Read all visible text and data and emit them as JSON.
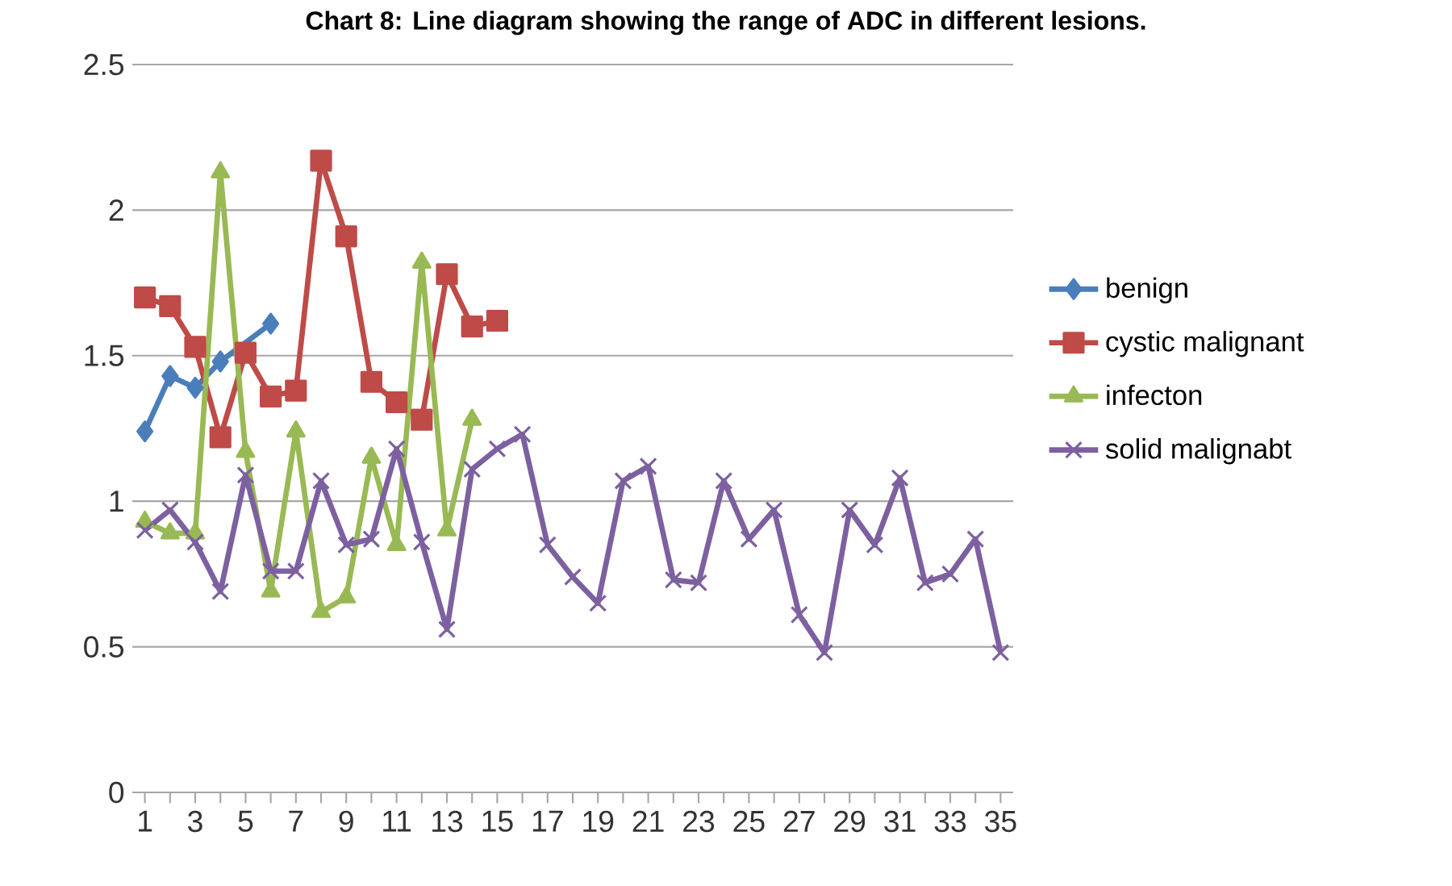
{
  "chart_data": {
    "type": "line",
    "title": "Chart 8: Line diagram showing the range of ADC in different lesions.",
    "categories": [
      "1",
      null,
      "3",
      null,
      "5",
      null,
      "7",
      null,
      "9",
      null,
      "11",
      null,
      "13",
      null,
      "15",
      null,
      "17",
      null,
      "19",
      null,
      "21",
      null,
      "23",
      null,
      "25",
      null,
      "27",
      null,
      "29",
      null,
      "31",
      null,
      "33",
      null,
      "35"
    ],
    "series": [
      {
        "name": "benign",
        "color": "#4a7ebb",
        "marker": "diamond",
        "values": [
          1.24,
          1.43,
          1.39,
          1.48,
          null,
          1.61,
          null,
          null,
          null,
          null,
          null,
          null,
          null,
          null,
          null,
          null,
          null,
          null,
          null,
          null,
          null,
          null,
          null,
          null,
          null,
          null,
          null,
          null,
          null,
          null,
          null,
          null,
          null,
          null,
          null
        ]
      },
      {
        "name": "cystic malignant",
        "color": "#be4b48",
        "marker": "square",
        "values": [
          1.7,
          1.67,
          1.53,
          1.22,
          1.51,
          1.36,
          1.38,
          2.17,
          1.91,
          1.41,
          1.34,
          1.28,
          1.78,
          1.6,
          1.62,
          null,
          null,
          null,
          null,
          null,
          null,
          null,
          null,
          null,
          null,
          null,
          null,
          null,
          null,
          null,
          null,
          null,
          null,
          null,
          null
        ]
      },
      {
        "name": "infecton",
        "color": "#98b954",
        "marker": "triangle",
        "values": [
          0.93,
          0.89,
          0.89,
          2.13,
          1.17,
          0.69,
          1.24,
          0.62,
          0.67,
          1.15,
          0.85,
          1.82,
          0.9,
          1.28,
          null,
          null,
          null,
          null,
          null,
          null,
          null,
          null,
          null,
          null,
          null,
          null,
          null,
          null,
          null,
          null,
          null,
          null,
          null,
          null,
          null
        ]
      },
      {
        "name": "solid malignabt",
        "color": "#7d60a0",
        "marker": "cross",
        "values": [
          0.9,
          0.97,
          0.86,
          0.69,
          1.09,
          0.76,
          0.76,
          1.07,
          0.85,
          0.87,
          1.18,
          0.86,
          0.56,
          1.11,
          1.18,
          1.23,
          0.85,
          0.74,
          0.65,
          1.07,
          1.12,
          0.73,
          0.72,
          1.07,
          0.87,
          0.97,
          0.61,
          0.48,
          0.97,
          0.85,
          1.08,
          0.72,
          0.75,
          0.87,
          0.48
        ]
      }
    ],
    "ylim": [
      0,
      2.5
    ],
    "yticks": [
      0,
      0.5,
      1,
      1.5,
      2,
      2.5
    ],
    "grid": "y",
    "legend": "right"
  }
}
